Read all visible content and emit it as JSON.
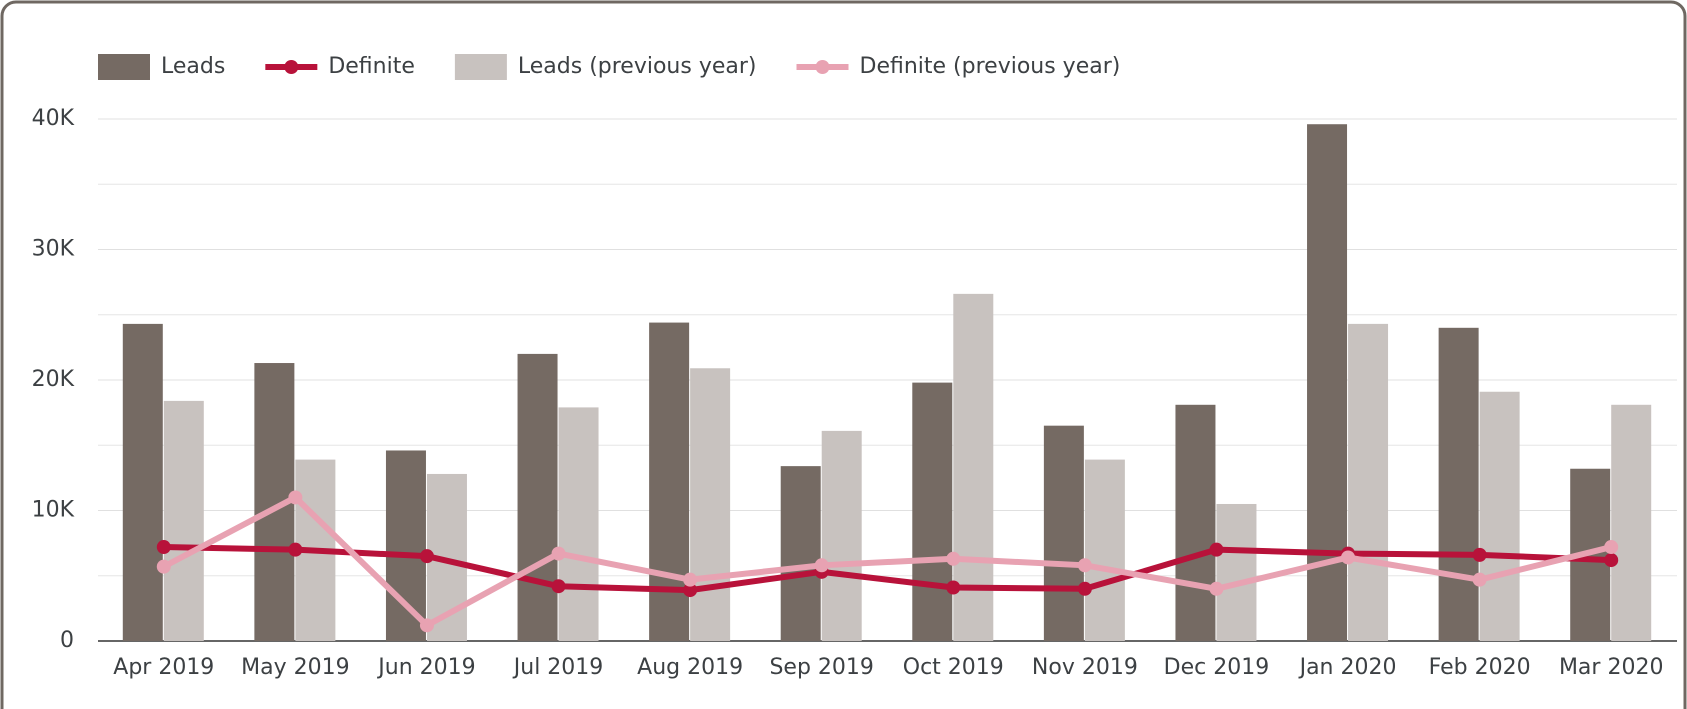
{
  "chart_data": {
    "type": "bar",
    "categories": [
      "Apr 2019",
      "May 2019",
      "Jun 2019",
      "Jul 2019",
      "Aug 2019",
      "Sep 2019",
      "Oct 2019",
      "Nov 2019",
      "Dec 2019",
      "Jan 2020",
      "Feb 2020",
      "Mar 2020"
    ],
    "series": [
      {
        "name": "Leads",
        "type": "bar",
        "color": "#756a63",
        "values": [
          24300,
          21300,
          14600,
          22000,
          24400,
          13400,
          19800,
          16500,
          18100,
          39600,
          24000,
          13200
        ]
      },
      {
        "name": "Definite",
        "type": "line",
        "color": "#b8123a",
        "values": [
          7200,
          7000,
          6500,
          4200,
          3900,
          5300,
          4100,
          4000,
          7000,
          6700,
          6600,
          6200
        ]
      },
      {
        "name": "Leads (previous year)",
        "type": "bar",
        "color": "#c8c2bf",
        "values": [
          18400,
          13900,
          12800,
          17900,
          20900,
          16100,
          26600,
          13900,
          10500,
          24300,
          19100,
          18100
        ]
      },
      {
        "name": "Definite (previous year)",
        "type": "line",
        "color": "#e8a2b2",
        "values": [
          5700,
          11000,
          1200,
          6700,
          4700,
          5800,
          6300,
          5800,
          4000,
          6400,
          4700,
          7200
        ]
      }
    ],
    "ylim": [
      0,
      40000
    ],
    "yticks": [
      0,
      {
        "value": 10000,
        "label": "10K"
      },
      {
        "value": 20000,
        "label": "20K"
      },
      {
        "value": 30000,
        "label": "30K"
      },
      {
        "value": 40000,
        "label": "40K"
      }
    ],
    "minor_yticks": [
      5000,
      15000,
      25000,
      35000
    ],
    "grid": true,
    "legend": "top"
  }
}
